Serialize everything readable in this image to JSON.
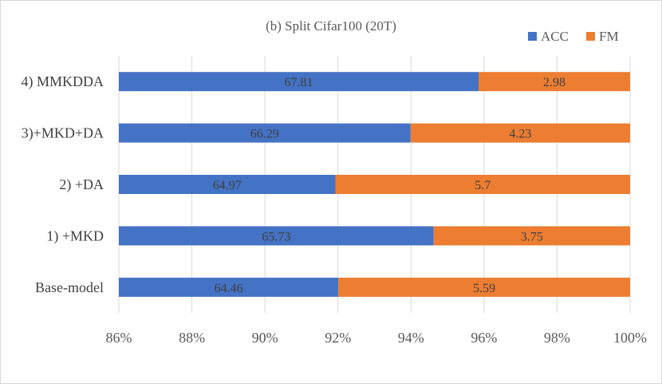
{
  "chart_data": {
    "type": "bar",
    "orientation": "horizontal",
    "stacked": true,
    "title": "(b) Split Cifar100 (20T)",
    "categories": [
      "4) MMKDDA",
      "3)+MKD+DA",
      "2) +DA",
      "1) +MKD",
      "Base-model"
    ],
    "series": [
      {
        "name": "ACC",
        "color": "#4472c4",
        "values": [
          67.81,
          66.29,
          64.97,
          65.73,
          64.46
        ]
      },
      {
        "name": "FM",
        "color": "#ed7d31",
        "values": [
          2.98,
          4.23,
          5.7,
          3.75,
          5.59
        ]
      }
    ],
    "axis_scale": {
      "min": 0.86,
      "max": 1.0,
      "step": 0.02
    },
    "segment_fractions": {
      "ACC": [
        0.0985,
        0.0799,
        0.0593,
        0.0862,
        0.0601
      ],
      "FM": [
        0.0415,
        0.0601,
        0.0807,
        0.0538,
        0.0799
      ]
    },
    "x_tick_labels": [
      "86%",
      "88%",
      "90%",
      "92%",
      "94%",
      "96%",
      "98%",
      "100%"
    ],
    "xlabel": "",
    "ylabel": "",
    "grid": true,
    "legend_position": "top-right"
  }
}
